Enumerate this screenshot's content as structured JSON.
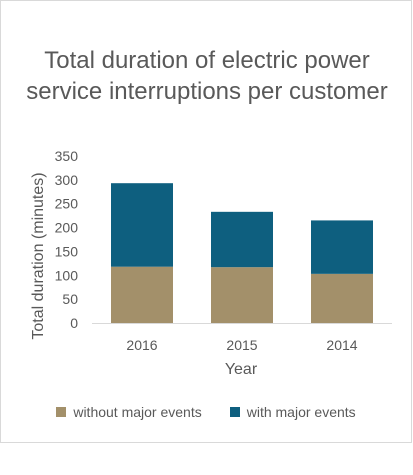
{
  "chart_data": {
    "type": "bar",
    "stacked": true,
    "title": "Total duration of electric power service interruptions per customer",
    "xlabel": "Year",
    "ylabel": "Total duration (minutes)",
    "categories": [
      "2016",
      "2015",
      "2014"
    ],
    "series": [
      {
        "name": "without major events",
        "color": "#a3906a",
        "values": [
          118,
          117,
          103
        ]
      },
      {
        "name": "with major events",
        "color": "#0e5f7f",
        "values": [
          175,
          116,
          112
        ]
      }
    ],
    "ylim": [
      0,
      350
    ],
    "yticks": [
      0,
      50,
      100,
      150,
      200,
      250,
      300,
      350
    ],
    "grid": false,
    "legend_position": "bottom"
  }
}
